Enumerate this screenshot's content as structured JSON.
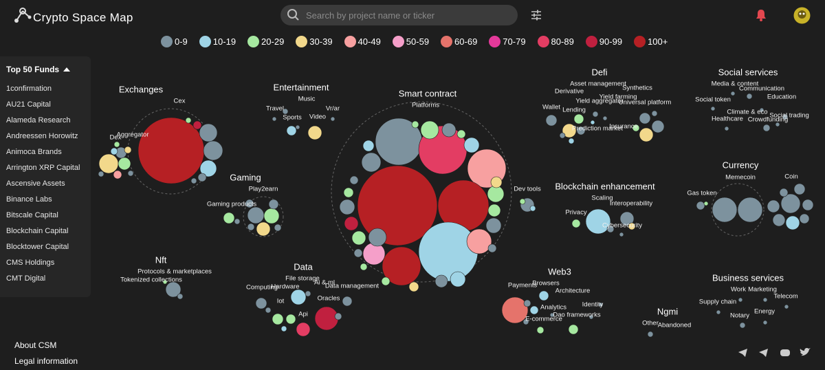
{
  "header": {
    "logo": "Crypto Space Map",
    "search_placeholder": "Search by project name or ticker"
  },
  "legend": [
    {
      "label": "0-9",
      "color": "#7d929e"
    },
    {
      "label": "10-19",
      "color": "#9fd4e6"
    },
    {
      "label": "20-29",
      "color": "#a6e8a0"
    },
    {
      "label": "30-39",
      "color": "#f2d88b"
    },
    {
      "label": "40-49",
      "color": "#f7a0a0"
    },
    {
      "label": "50-59",
      "color": "#f59fc9"
    },
    {
      "label": "60-69",
      "color": "#e5736b"
    },
    {
      "label": "70-79",
      "color": "#e4399a"
    },
    {
      "label": "80-89",
      "color": "#e33d63"
    },
    {
      "label": "90-99",
      "color": "#c0203f"
    },
    {
      "label": "100+",
      "color": "#b62024"
    }
  ],
  "sidebar": {
    "title": "Top 50 Funds",
    "funds": [
      "1confirmation",
      "AU21 Capital",
      "Alameda Research",
      "Andreessen Horowitz",
      "Animoca Brands",
      "Arrington XRP Capital",
      "Ascensive Assets",
      "Binance Labs",
      "Bitscale Capital",
      "Blockchain Capital",
      "Blocktower Capital",
      "CMS Holdings",
      "CMT Digital"
    ]
  },
  "footer": {
    "links": [
      "About CSM",
      "Legal information"
    ]
  },
  "clusters": [
    {
      "title": "Exchanges",
      "labels": [
        "Cex",
        "Aggregator",
        "Dex"
      ]
    },
    {
      "title": "Entertainment",
      "labels": [
        "Music",
        "Travel",
        "Vr/ar",
        "Sports",
        "Video"
      ]
    },
    {
      "title": "Smart contract",
      "labels": [
        "Platforms",
        "Dev tools"
      ]
    },
    {
      "title": "Defi",
      "labels": [
        "Asset management",
        "Derivative",
        "Yield farming",
        "Synthetics",
        "Wallet",
        "Yield aggregator",
        "Universal platform",
        "Lending",
        "Prediction market",
        "Insurance"
      ]
    },
    {
      "title": "Social services",
      "labels": [
        "Media & content",
        "Communication",
        "Social token",
        "Education",
        "Climate & eco",
        "Social trading",
        "Healthcare",
        "Crowdfunding"
      ]
    },
    {
      "title": "Gaming",
      "labels": [
        "Play2earn",
        "Gaming products"
      ]
    },
    {
      "title": "Blockchain enhancement",
      "labels": [
        "Scaling",
        "Interoperability",
        "Privacy",
        "Cybersecurity"
      ]
    },
    {
      "title": "Currency",
      "labels": [
        "Memecoin",
        "Coin",
        "Gas token"
      ]
    },
    {
      "title": "Nft",
      "labels": [
        "Protocols & marketplaces",
        "Tokenized collections"
      ]
    },
    {
      "title": "Data",
      "labels": [
        "File storage",
        "Hardware",
        "Ai & ml",
        "Computing",
        "Data management",
        "Oracles",
        "Iot",
        "Api"
      ]
    },
    {
      "title": "Web3",
      "labels": [
        "Browsers",
        "Payments",
        "Architecture",
        "Analytics",
        "Identity",
        "Dao frameworks",
        "E-commerce"
      ]
    },
    {
      "title": "Ngmi",
      "labels": [
        "Other",
        "Abandoned"
      ]
    },
    {
      "title": "Business services",
      "labels": [
        "Work",
        "Marketing",
        "Supply chain",
        "Telecom",
        "Notary",
        "Energy"
      ]
    }
  ]
}
